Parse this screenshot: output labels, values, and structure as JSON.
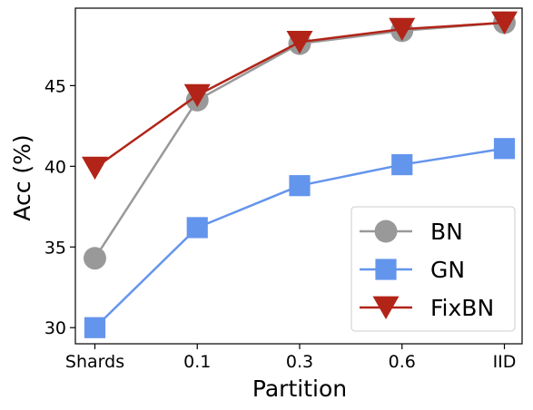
{
  "chart_data": {
    "type": "line",
    "title": "",
    "xlabel": "Partition",
    "ylabel": "Acc (%)",
    "categories": [
      "Shards",
      "0.1",
      "0.3",
      "0.6",
      "IID"
    ],
    "ylim": [
      29,
      49.8
    ],
    "yticks": [
      30,
      35,
      40,
      45
    ],
    "grid": false,
    "legend_position": "lower-right",
    "series": [
      {
        "name": "BN",
        "values": [
          34.3,
          44.1,
          47.6,
          48.4,
          48.9
        ],
        "color": "#999999",
        "marker": "circle"
      },
      {
        "name": "GN",
        "values": [
          30.0,
          36.2,
          38.8,
          40.1,
          41.1
        ],
        "color": "#6495ed",
        "marker": "square"
      },
      {
        "name": "FixBN",
        "values": [
          39.9,
          44.4,
          47.7,
          48.5,
          48.9
        ],
        "color": "#b22418",
        "marker": "triangle-down"
      }
    ]
  }
}
